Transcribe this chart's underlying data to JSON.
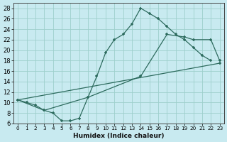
{
  "xlabel": "Humidex (Indice chaleur)",
  "ylabel": "",
  "bg_color": "#c8eaf0",
  "grid_color": "#9dcfcc",
  "line_color": "#2d6b5e",
  "xlim": [
    -0.5,
    23.5
  ],
  "ylim": [
    6,
    29
  ],
  "xticks": [
    0,
    1,
    2,
    3,
    4,
    5,
    6,
    7,
    8,
    9,
    10,
    11,
    12,
    13,
    14,
    15,
    16,
    17,
    18,
    19,
    20,
    21,
    22,
    23
  ],
  "yticks": [
    6,
    8,
    10,
    12,
    14,
    16,
    18,
    20,
    22,
    24,
    26,
    28
  ],
  "line1_x": [
    0,
    1,
    2,
    3,
    4,
    5,
    6,
    7,
    8,
    9,
    10,
    11,
    12,
    13,
    14,
    15,
    16,
    17,
    18,
    19,
    20,
    21,
    22
  ],
  "line1_y": [
    10.5,
    10,
    9.5,
    8.5,
    8.0,
    6.5,
    6.5,
    7.0,
    11.0,
    15.0,
    19.5,
    22.0,
    23.0,
    25.0,
    28.0,
    27.0,
    26.0,
    24.5,
    23.0,
    22.0,
    20.5,
    19.0,
    18.0
  ],
  "line2_x": [
    0,
    3,
    8,
    14,
    17,
    19,
    20,
    22,
    23
  ],
  "line2_y": [
    10.5,
    8.5,
    11.0,
    15.0,
    23.0,
    22.5,
    22.0,
    22.0,
    18.0
  ],
  "line3_x": [
    0,
    23
  ],
  "line3_y": [
    10.5,
    17.5
  ]
}
